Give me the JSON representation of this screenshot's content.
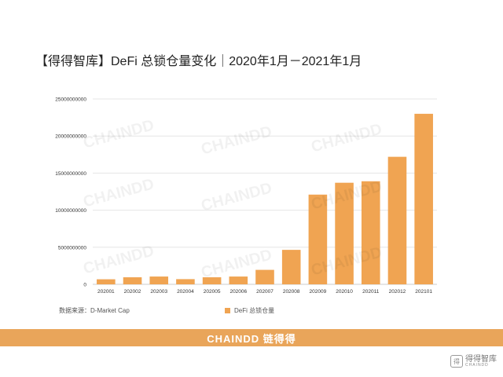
{
  "title": "【得得智库】DeFi 总锁仓量变化｜2020年1月－2021年1月",
  "source": "数据来源：D-Market Cap",
  "footer": {
    "brand": "CHAINDD 链得得"
  },
  "corner_logo": {
    "icon": "得",
    "name": "得得智库",
    "sub": "CHAINDD"
  },
  "watermark_text": "CHAINDD",
  "colors": {
    "bar": "#F0A452",
    "grid": "#E6E6E6",
    "axis_text": "#333333",
    "band": "#E9A55A"
  },
  "chart_data": {
    "type": "bar",
    "title": "【得得智库】DeFi 总锁仓量变化｜2020年1月－2021年1月",
    "categories": [
      "202001",
      "202002",
      "202003",
      "202004",
      "202005",
      "202006",
      "202007",
      "202008",
      "202009",
      "202010",
      "202011",
      "202012",
      "202101"
    ],
    "series": [
      {
        "name": "DeFi 总锁仓量",
        "values": [
          680000000,
          950000000,
          1050000000,
          700000000,
          950000000,
          1050000000,
          1950000000,
          4650000000,
          12100000000,
          13700000000,
          13900000000,
          17200000000,
          23000000000
        ]
      }
    ],
    "yticks": [
      0,
      5000000000,
      10000000000,
      15000000000,
      20000000000,
      25000000000
    ],
    "ytick_labels": [
      "0",
      "5000000000",
      "10000000000",
      "15000000000",
      "20000000000",
      "25000000000"
    ],
    "ylim": [
      0,
      25000000000
    ],
    "xlabel": "",
    "ylabel": "",
    "grid": true,
    "legend": "bottom-center"
  }
}
